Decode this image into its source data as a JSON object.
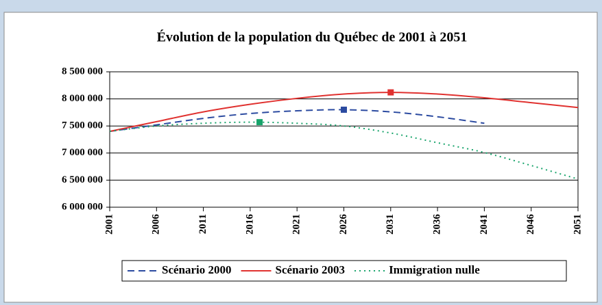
{
  "chart_data": {
    "type": "line",
    "title": "Évolution de la population du Québec de 2001 à 2051",
    "xlim": [
      2001,
      2051
    ],
    "xticks": [
      2001,
      2006,
      2011,
      2016,
      2021,
      2026,
      2031,
      2036,
      2041,
      2046,
      2051
    ],
    "ylim": [
      6000000,
      8500000
    ],
    "yticks": [
      {
        "value": 6000000,
        "label": "6 000 000"
      },
      {
        "value": 6500000,
        "label": "6 500 000"
      },
      {
        "value": 7000000,
        "label": "7 000 000"
      },
      {
        "value": 7500000,
        "label": "7 500 000"
      },
      {
        "value": 8000000,
        "label": "8 000 000"
      },
      {
        "value": 8500000,
        "label": "8 500 000"
      }
    ],
    "grid": true,
    "legend": "bottom",
    "series": [
      {
        "name": "Scénario 2000",
        "color": "#2b4aa0",
        "dash": "dashed",
        "x": [
          2001,
          2006,
          2011,
          2016,
          2021,
          2026,
          2031,
          2036,
          2041
        ],
        "values": [
          7400000,
          7520000,
          7640000,
          7730000,
          7780000,
          7800000,
          7760000,
          7670000,
          7550000
        ],
        "marker": {
          "x": 2026,
          "value": 7800000
        }
      },
      {
        "name": "Scénario 2003",
        "color": "#e0312f",
        "dash": "solid",
        "x": [
          2001,
          2006,
          2011,
          2016,
          2021,
          2026,
          2031,
          2036,
          2041,
          2046,
          2051
        ],
        "values": [
          7400000,
          7580000,
          7760000,
          7900000,
          8010000,
          8090000,
          8120000,
          8090000,
          8020000,
          7930000,
          7840000
        ],
        "marker": {
          "x": 2031,
          "value": 8120000
        }
      },
      {
        "name": "Immigration nulle",
        "color": "#16a36a",
        "dash": "dotted",
        "x": [
          2001,
          2006,
          2011,
          2016,
          2021,
          2026,
          2031,
          2036,
          2041,
          2046,
          2051
        ],
        "values": [
          7400000,
          7500000,
          7550000,
          7570000,
          7550000,
          7500000,
          7370000,
          7190000,
          7010000,
          6770000,
          6520000
        ],
        "marker": {
          "x": 2017,
          "value": 7570000
        }
      }
    ]
  }
}
